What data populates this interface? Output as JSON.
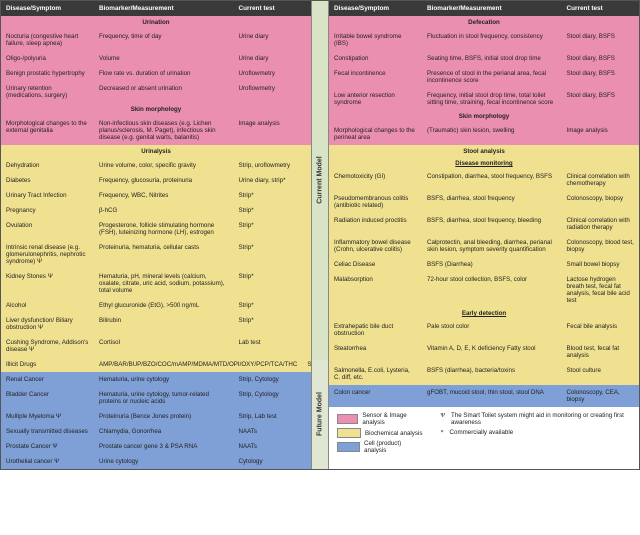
{
  "colors": {
    "pink": "#eb8fb0",
    "yellow": "#f0e190",
    "blue": "#7fa0d6",
    "header": "#3a3a3a",
    "vlabel_bg": "#d9e4c6"
  },
  "headers": {
    "disease": "Disease/Symptom",
    "bio": "Biomarker/Measurement",
    "test": "Current test"
  },
  "vlabels": {
    "current": "Current Model",
    "future": "Future Model"
  },
  "left": {
    "sections": {
      "urination": "Urination",
      "skin": "Skin morphology",
      "urinalysis": "Urinalysis"
    },
    "urination": [
      {
        "d": "Nocturia (congestive heart failure, sleep apnea)",
        "b": "Frequency, time of day",
        "t": "Urine diary"
      },
      {
        "d": "Oligo-/polyuria",
        "b": "Volume",
        "t": "Urine diary"
      },
      {
        "d": "Benign prostatic hypertrophy",
        "b": "Flow rate vs. duration of urination",
        "t": "Uroflowmetry"
      },
      {
        "d": "Urinary retention (medications, surgery)",
        "b": "Decreased or absent urination",
        "t": "Uroflowmetry"
      }
    ],
    "skin": [
      {
        "d": "Morphological changes to the external genitalia",
        "b": "Non-infectious skin diseases (e.g. Lichen planus/sclerosis, M. Paget), infectious skin disease (e.g. genital warts, balanitis)",
        "t": "Image analysis"
      }
    ],
    "urinalysis": [
      {
        "d": "Dehydration",
        "b": "Urine volume, color, specific gravity",
        "t": "Strip, uroflowmetry"
      },
      {
        "d": "Diabetes",
        "b": "Frequency, glucosuria, proteinuria",
        "t": "Urine diary, strip*"
      },
      {
        "d": "Urinary Tract Infection",
        "b": "Frequency, WBC, Nitrites",
        "t": "Strip*"
      },
      {
        "d": "Pregnancy",
        "b": "β-hCG",
        "t": "Strip*"
      },
      {
        "d": "Ovulation",
        "b": "Progesterone, follicle stimulating hormone (FSH), luteinizing hormone (LH), estrogen",
        "t": "Strip*"
      },
      {
        "d": "Intrinsic renal disease (e.g. glomerulonephritis, nephrotic syndrome) Ψ",
        "b": "Proteinuria, hematuria, cellular casts",
        "t": "Strip*"
      },
      {
        "d": "Kidney Stones Ψ",
        "b": "Hematuria, pH, mineral levels (calcium, oxalate, citrate, uric acid, sodium, potassium), total volume",
        "t": "Strip*"
      },
      {
        "d": "Alcohol",
        "b": "Ethyl glucuronide (EtG), >500 ng/mL",
        "t": "Strip*"
      },
      {
        "d": "Liver dysfunction/ Biliary obstruction Ψ",
        "b": "Bilirubin",
        "t": "Strip*"
      },
      {
        "d": "Cushing Syndrome, Addison's disease Ψ",
        "b": "Cortisol",
        "t": "Lab test"
      },
      {
        "d": "Illicit Drugs",
        "b": "AMP/BAR/BUP/BZO/COC/mAMP/MDMA/MTD/OPI/OXY/PCP/TCA/THC",
        "t": "Strip*"
      }
    ],
    "future": [
      {
        "d": "Renal Cancer",
        "b": "Hematuria, urine cytology",
        "t": "Strip, Cytology"
      },
      {
        "d": "Bladder Cancer",
        "b": "Hematuria, urine cytology, tumor-related proteins or nucleic acids",
        "t": "Strip, Cytology"
      },
      {
        "d": "Multiple Myeloma Ψ",
        "b": "Proteinuria (Bence Jones protein)",
        "t": "Strip, Lab test"
      },
      {
        "d": "Sexually transmitted diseases",
        "b": "Chlamydia, Gonorrhea",
        "t": "NAATs"
      },
      {
        "d": "Prostate Cancer Ψ",
        "b": "Prostate cancer gene 3 & PSA RNA",
        "t": "NAATs"
      },
      {
        "d": "Urothelial cancer Ψ",
        "b": "Urine cytology",
        "t": "Cytology"
      }
    ]
  },
  "right": {
    "sections": {
      "defecation": "Defecation",
      "skin": "Skin morphology",
      "stool": "Stool analysis",
      "monitoring": "Disease monitoring",
      "early": "Early detection"
    },
    "defecation": [
      {
        "d": "Irritable bowel syndrome (IBS)",
        "b": "Fluctuation in stool frequency, consistency",
        "t": "Stool diary, BSFS"
      },
      {
        "d": "Constipation",
        "b": "Seating time, BSFS, initial stool drop time",
        "t": "Stool diary, BSFS"
      },
      {
        "d": "Fecal incontinence",
        "b": "Presence of stool in the perianal area, fecal incontinence score",
        "t": "Stool diary, BSFS"
      },
      {
        "d": "Low anterior resection syndrome",
        "b": "Frequency, initial stool drop time, total toilet sitting time, straining, fecal incontinence score",
        "t": "Stool diary, BSFS"
      }
    ],
    "skin": [
      {
        "d": "Morphological changes to the perineal area",
        "b": "(Traumatic) skin lesion, swelling",
        "t": "Image analysis"
      }
    ],
    "monitoring": [
      {
        "d": "Chemotoxicity (GI)",
        "b": "Constipation, diarrhea, stool frequency, BSFS",
        "t": "Clinical correlation with chemotherapy"
      },
      {
        "d": "Pseudomembranous colitis (antibiotic related)",
        "b": "BSFS, diarrhea, stool frequency",
        "t": "Colonoscopy, biopsy"
      },
      {
        "d": "Radiation induced proctitis",
        "b": "BSFS, diarrhea, stool frequency, bleeding",
        "t": "Clinical correlation with radiation therapy"
      },
      {
        "d": "Inflammatory bowel disease (Crohn, ulcerative colitis)",
        "b": "Calprotectin, anal bleeding, diarrhea, perianal skin lesion, symptom severity quantification",
        "t": "Colonoscopy, blood test, biopsy"
      },
      {
        "d": "Celiac Disease",
        "b": "BSFS (Diarrhea)",
        "t": "Small bowel biopsy"
      },
      {
        "d": "Malabsorption",
        "b": "72-hour stool collection, BSFS, color",
        "t": "Lactose hydrogen breath test, fecal fat analysis, fecal bile acid test"
      }
    ],
    "early": [
      {
        "d": "Extrahepatic bile duct obstruction",
        "b": "Pale stool color",
        "t": "Fecal bile analysis"
      },
      {
        "d": "Steatorrhea",
        "b": "Vitamin A, D, E, K deficiency\nFatty stool",
        "t": "Blood test, fecal fat analysis"
      },
      {
        "d": "Salmonella, E.coli, Lysteria, C. diff, etc.",
        "b": "BSFS (diarrhea), bacteria/toxins",
        "t": "Stool culture"
      }
    ],
    "future": [
      {
        "d": "Colon cancer",
        "b": "gFOBT, mucoid stool, thin stool, stool DNA",
        "t": "Colonoscopy, CEA, biopsy"
      }
    ]
  },
  "legend": {
    "swatches": [
      {
        "label": "Sensor & Image analysis",
        "color": "#eb8fb0"
      },
      {
        "label": "Biochemical analysis",
        "color": "#f0e190"
      },
      {
        "label": "Cell (product) analysis",
        "color": "#7fa0d6"
      }
    ],
    "notes": [
      {
        "sym": "Ψ",
        "text": "The Smart Toilet system might aid in monitoring or creating first awareness"
      },
      {
        "sym": "*",
        "text": "Commercially available"
      }
    ]
  }
}
